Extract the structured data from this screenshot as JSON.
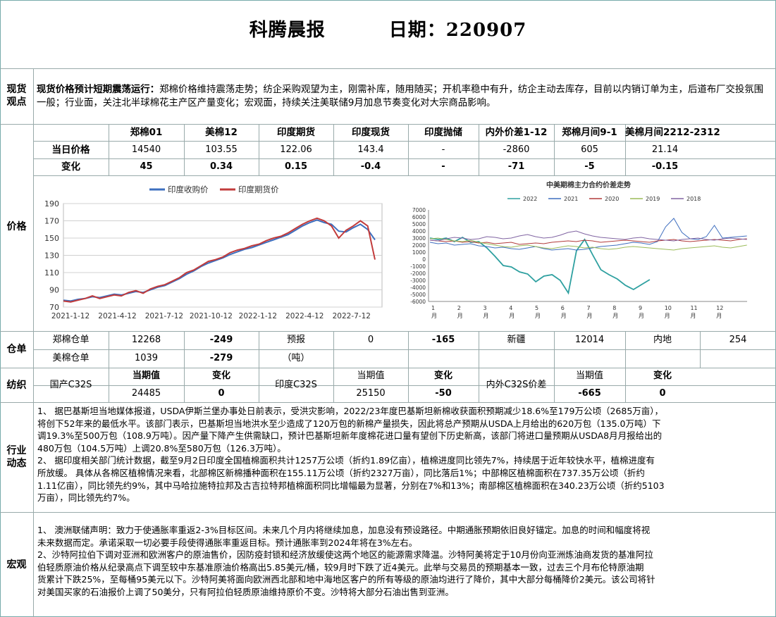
{
  "header": {
    "report_title": "科腾晨报",
    "date_label": "日期：220907"
  },
  "sections": {
    "spot": "现货观点",
    "price": "价格",
    "warehouse": "仓单",
    "yarn": "纺织",
    "industry": "行业动态",
    "macro": "宏观"
  },
  "spot_view": {
    "lead": "现货价格预计短期震荡运行：",
    "text": "郑棉价格维持震荡走势；纺企采购观望为主，刚需补库，随用随买；开机率稳中有升，纺企主动去库存，目前以内销订单为主，后道布厂交投氛围一般；行业面，关注北半球棉花主产区产量变化；宏观面，持续关注美联储9月加息节奏变化对大宗商品影响。"
  },
  "price_table": {
    "headers": [
      "郑棉01",
      "美棉12",
      "印度期货",
      "印度现货",
      "印度抛储",
      "内外价差1-12",
      "郑棉月间9-1",
      "美棉月间2212-2312"
    ],
    "row1_label": "当日价格",
    "row1": [
      "14540",
      "103.55",
      "122.06",
      "143.4",
      "-",
      "-2860",
      "605",
      "21.14"
    ],
    "row2_label": "变化",
    "row2": [
      "45",
      "0.34",
      "0.15",
      "-0.4",
      "-",
      "-71",
      "-5",
      "-0.15"
    ]
  },
  "chart_data": [
    {
      "type": "line",
      "title": "",
      "legend": "top",
      "x_ticks": [
        "2021-1-12",
        "2021-4-12",
        "2021-7-12",
        "2021-10-12",
        "2022-1-12",
        "2022-4-12",
        "2022-7-12"
      ],
      "ylim": [
        70,
        190
      ],
      "y_ticks": [
        70,
        90,
        110,
        130,
        150,
        170,
        190
      ],
      "grid": true,
      "series": [
        {
          "name": "印度收购价",
          "color": "#3d6fbf",
          "values": [
            78,
            77,
            79,
            80,
            82,
            81,
            83,
            85,
            84,
            86,
            88,
            87,
            90,
            93,
            95,
            99,
            103,
            108,
            112,
            117,
            121,
            124,
            127,
            131,
            134,
            137,
            139,
            142,
            145,
            148,
            151,
            154,
            159,
            164,
            168,
            171,
            168,
            166,
            158,
            157,
            162,
            166,
            160,
            148
          ]
        },
        {
          "name": "印度期货价",
          "color": "#c23b3b",
          "values": [
            77,
            76,
            78,
            80,
            83,
            80,
            82,
            84,
            83,
            87,
            89,
            86,
            91,
            94,
            96,
            100,
            104,
            110,
            113,
            118,
            123,
            125,
            128,
            133,
            136,
            138,
            141,
            143,
            147,
            150,
            152,
            156,
            161,
            166,
            170,
            173,
            170,
            164,
            150,
            159,
            164,
            170,
            164,
            125
          ]
        }
      ]
    },
    {
      "type": "line",
      "title": "中美期棉主力合约价差走势",
      "legend": "top",
      "x_ticks": [
        "1\n月",
        "2\n月",
        "3\n月",
        "4\n月",
        "5\n月",
        "6\n月",
        "7\n月",
        "8\n月",
        "9\n月",
        "10\n月",
        "11\n月",
        "12\n月"
      ],
      "ylim": [
        -6000,
        7000
      ],
      "y_ticks": [
        7000,
        6000,
        5000,
        4000,
        3000,
        2000,
        1000,
        0,
        -1000,
        -2000,
        -3000,
        -4000,
        -5000,
        -6000
      ],
      "grid": false,
      "series": [
        {
          "name": "2022",
          "color": "#2ea0a0",
          "values": [
            3000,
            2800,
            3000,
            2500,
            3100,
            2400,
            2500,
            1600,
            400,
            -900,
            -1100,
            -1800,
            -2100,
            -3200,
            -2400,
            -2200,
            -3000,
            -4800,
            1200,
            2800,
            600,
            -1500,
            -2200,
            -2800,
            -3700,
            -4300,
            -3600,
            -2900
          ]
        },
        {
          "name": "2021",
          "color": "#3f6fbf",
          "values": [
            2400,
            2200,
            2300,
            2000,
            2100,
            2200,
            1900,
            1800,
            1600,
            1700,
            1500,
            1400,
            1600,
            1800,
            1500,
            1300,
            1400,
            1500,
            1300,
            1400,
            1600,
            1800,
            1900,
            2000,
            2200,
            2400,
            2300,
            2100,
            2500,
            4600,
            5800,
            3800,
            2900,
            2800,
            3200,
            4800,
            3000,
            3100,
            3200,
            3300
          ]
        },
        {
          "name": "2020",
          "color": "#b23a3a",
          "values": [
            2700,
            2600,
            2500,
            2600,
            2400,
            2500,
            2300,
            2400,
            2200,
            2300,
            2400,
            2100,
            2200,
            2300,
            2200,
            2400,
            2500,
            2600,
            2500,
            2700,
            2600,
            2400,
            2500,
            2600,
            2700,
            2600,
            2500,
            2400,
            2600,
            2700,
            2800,
            2600,
            2500,
            2600,
            2700,
            2800,
            2700,
            2600,
            2800,
            2900
          ]
        },
        {
          "name": "2019",
          "color": "#9bbb59",
          "values": [
            2900,
            3000,
            2800,
            2600,
            2500,
            2700,
            2400,
            2200,
            2000,
            1800,
            1700,
            1900,
            2000,
            1800,
            1600,
            1500,
            1700,
            1900,
            1800,
            1600,
            1700,
            1500,
            1400,
            1500,
            1700,
            1800,
            1700,
            1600,
            1500,
            1400,
            1300,
            1500,
            1600,
            1700,
            1800,
            1900,
            1700,
            1600,
            1800,
            2000
          ]
        },
        {
          "name": "2018",
          "color": "#8064a2",
          "values": [
            2700,
            2600,
            2900,
            3100,
            3000,
            2800,
            2900,
            3200,
            3100,
            2900,
            3000,
            3300,
            3500,
            3200,
            3000,
            3100,
            3400,
            3800,
            4000,
            3600,
            3300,
            3100,
            3000,
            2900,
            2800,
            3000,
            3100,
            2900,
            2800,
            2700,
            2600,
            2800,
            2900,
            3000,
            2800,
            2700,
            2900,
            3000,
            2900,
            2800
          ]
        }
      ]
    }
  ],
  "warehouse": {
    "r1": [
      "郑棉仓单",
      "12268",
      "-249",
      "预报",
      "0",
      "-165",
      "新疆",
      "12014",
      "内地",
      "254"
    ],
    "r2": [
      "美棉仓单",
      "1039",
      "-279",
      "（吨）"
    ]
  },
  "yarn": {
    "label1": "国产C32S",
    "h_cur": "当期值",
    "h_chg": "变化",
    "v1": "24485",
    "c1": "0",
    "label2": "印度C32S",
    "v2": "25150",
    "c2": "-50",
    "label3": "内外C32S价差",
    "v3": "-665",
    "c3": "0"
  },
  "industry": {
    "lines": [
      "1、  据巴基斯坦当地媒体报道，USDA伊斯兰堡办事处日前表示，受洪灾影响，2022/23年度巴基斯坦新棉收获面积预期减少18.6%至179万公顷（2685万亩），",
      "将创下52年来的最低水平。该部门表示，巴基斯坦当地洪水至少造成了120万包的新棉产量损失，因此将总产预期从USDA上月给出的620万包（135.0万吨）下",
      "调19.3%至500万包（108.9万吨）。因产量下降产生供需缺口，预计巴基斯坦新年度棉花进口量有望创下历史新高，该部门将进口量预期从USDA8月月报给出的",
      "480万包（104.5万吨）上调20.8%至580万包（126.3万吨）。",
      "2、  据印度相关部门统计数据，截至9月2日印度全国植棉面积共计1257万公顷（折约1.89亿亩），植棉进度同比领先7%，持续居于近年较快水平，植棉进度有",
      "所放缓。 具体从各棉区植棉情况来看，北部棉区新棉播种面积在155.11万公顷（折约2327万亩），同比落后1%；中部棉区植棉面积在737.35万公顷（折约",
      "1.11亿亩），同比领先约9%，其中马哈拉施特拉邦及古吉拉特邦植棉面积同比增幅最为显著，分别在7%和13%；南部棉区植棉面积在340.23万公顷（折约5103",
      "万亩），同比领先约7%。"
    ]
  },
  "macro": {
    "lines": [
      "1、  澳洲联储声明：致力于使通胀率重返2-3%目标区间。未来几个月内将继续加息，加息没有预设路径。中期通胀预期依旧良好锚定。加息的时间和幅度将视",
      "未来数据而定。承诺采取一切必要手段使得通胀率重返目标。预计通胀率到2024年将在3%左右。",
      "2、沙特阿拉伯下调对亚洲和欧洲客户的原油售价，因防疫封锁和经济放缓使这两个地区的能源需求降温。沙特阿美将定于10月份向亚洲炼油商发货的基准阿拉",
      "伯轻质原油价格从纪录高点下调至较中东基准原油价格高出5.85美元/桶，较9月时下跌了近4美元。此举与交易员的预期基本一致，过去三个月布伦特原油期",
      "货累计下跌25%，至每桶95美元以下。沙特阿美将面向欧洲西北部和地中海地区客户的所有等级的原油均进行了降价，其中大部分每桶降价2美元。该公司将针",
      "对美国买家的石油报价上调了50美分，只有阿拉伯轻质原油维持原价不变。沙特将大部分石油出售到亚洲。"
    ]
  }
}
